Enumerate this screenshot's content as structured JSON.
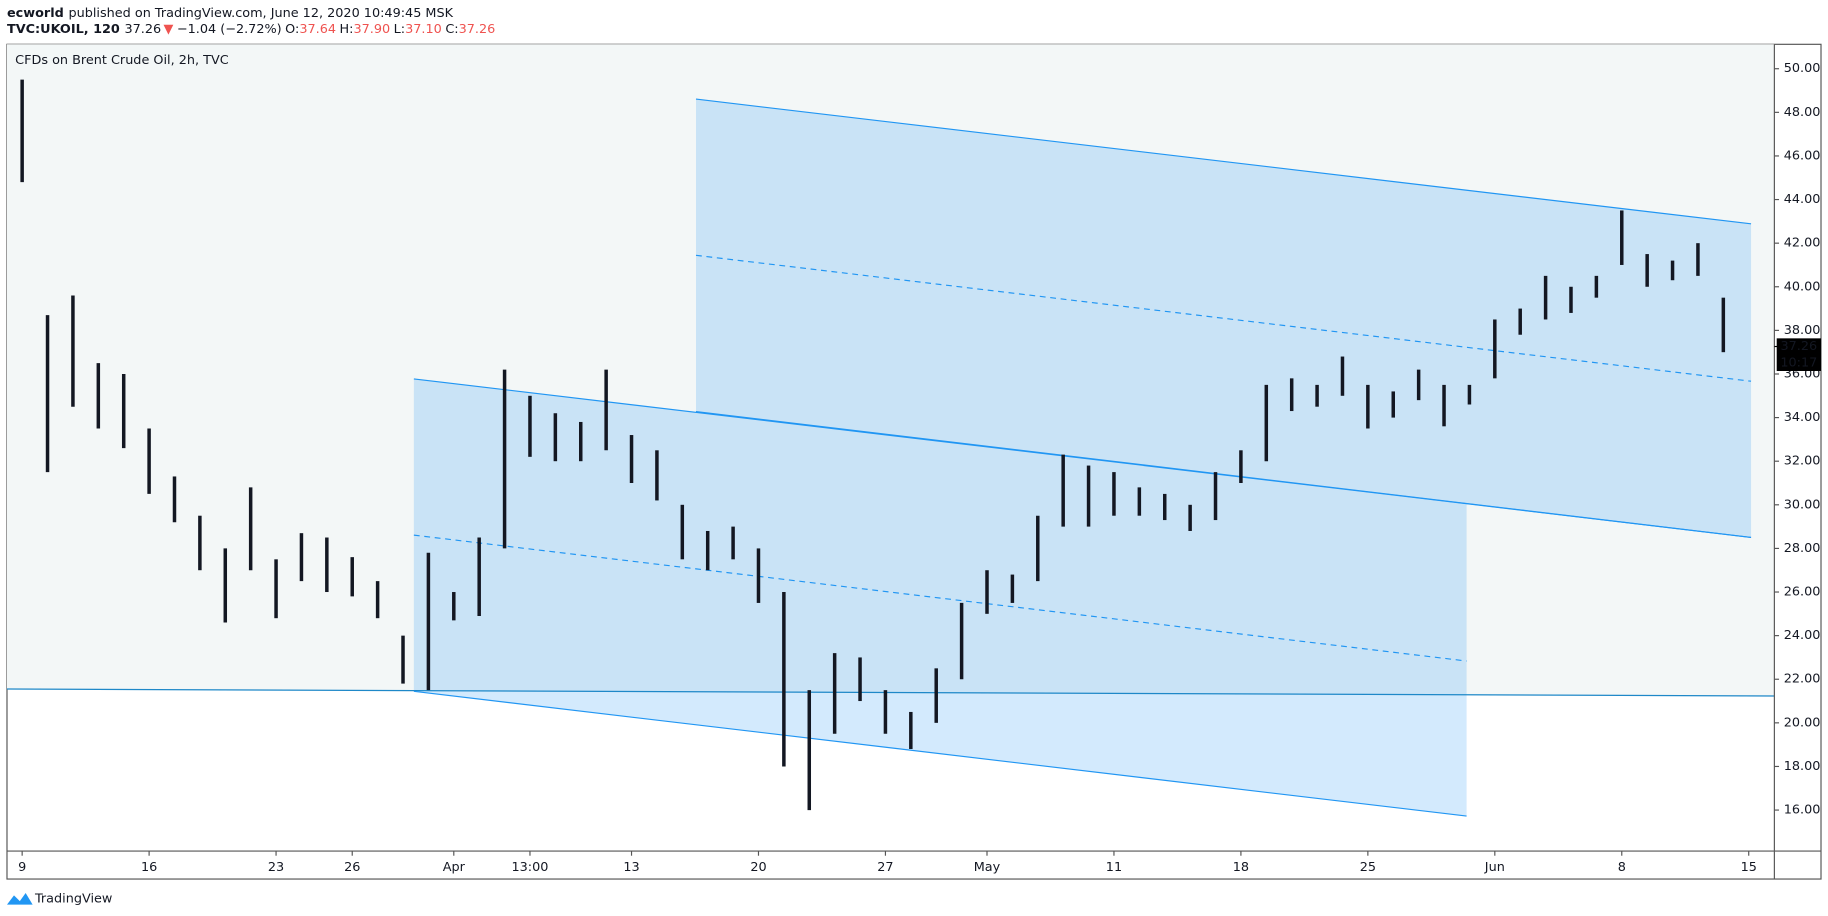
{
  "header": {
    "author": "ecworld",
    "published": "published on TradingView.com, June 12, 2020 10:49:45 MSK",
    "symbol": "TVC:UKOIL, 120",
    "price": "37.26",
    "change": "−1.04 (−2.72%)",
    "open_label": "O:",
    "open": "37.64",
    "high_label": "H:",
    "high": "37.90",
    "low_label": "L:",
    "low": "37.10",
    "close_label": "C:",
    "close": "37.26"
  },
  "footer": {
    "brand": "TradingView"
  },
  "chart_data": {
    "type": "range-bar",
    "title": "CFDs on Brent Crude Oil, 2h, TVC",
    "color": "#131722",
    "x": [
      "9",
      null,
      null,
      null,
      null,
      "16",
      null,
      null,
      null,
      null,
      "23",
      null,
      null,
      "26",
      null,
      null,
      null,
      "Apr",
      null,
      null,
      "13:00",
      null,
      null,
      null,
      "13",
      null,
      null,
      null,
      null,
      "20",
      null,
      null,
      null,
      null,
      "27",
      null,
      null,
      null,
      "May",
      null,
      null,
      null,
      null,
      "11",
      null,
      null,
      null,
      null,
      "18",
      null,
      null,
      null,
      null,
      "25",
      null,
      null,
      null,
      null,
      "Jun",
      null,
      null,
      null,
      null,
      "8",
      null,
      null,
      null,
      null,
      "15"
    ],
    "high": [
      49.5,
      38.7,
      39.6,
      36.5,
      36.0,
      33.5,
      31.3,
      29.5,
      28.0,
      30.8,
      27.5,
      28.7,
      28.5,
      27.6,
      26.5,
      24.0,
      27.8,
      26.0,
      28.5,
      36.2,
      35.0,
      34.2,
      33.8,
      36.2,
      33.2,
      32.5,
      30.0,
      28.8,
      29.0,
      28.0,
      26.0,
      21.5,
      23.2,
      23.0,
      21.5,
      20.5,
      22.5,
      25.5,
      27.0,
      26.8,
      29.5,
      32.3,
      31.8,
      31.5,
      30.8,
      30.5,
      30.0,
      31.5,
      32.5,
      35.5,
      35.8,
      35.5,
      36.8,
      35.5,
      35.2,
      36.2,
      35.5,
      35.5,
      38.5,
      39.0,
      40.5,
      40.0,
      40.5,
      43.5,
      41.5,
      41.2,
      42.0,
      39.5,
      null
    ],
    "low": [
      44.8,
      31.5,
      34.5,
      33.5,
      32.6,
      30.5,
      29.2,
      27.0,
      24.6,
      27.0,
      24.8,
      26.5,
      26.0,
      25.8,
      24.8,
      21.8,
      21.5,
      24.7,
      24.9,
      28.0,
      32.2,
      32.0,
      32.0,
      32.5,
      31.0,
      30.2,
      27.5,
      27.0,
      27.5,
      25.5,
      18.0,
      16.0,
      19.5,
      21.0,
      19.5,
      18.8,
      20.0,
      22.0,
      25.0,
      25.5,
      26.5,
      29.0,
      29.0,
      29.5,
      29.5,
      29.3,
      28.8,
      29.3,
      31.0,
      32.0,
      34.3,
      34.5,
      35.0,
      33.5,
      34.0,
      34.8,
      33.6,
      34.6,
      35.8,
      37.8,
      38.5,
      38.8,
      39.5,
      41.0,
      40.0,
      40.3,
      40.5,
      37.0,
      null
    ],
    "last_price": {
      "value": 37.26,
      "label": "37.26"
    },
    "countdown": "10:17",
    "ylim": [
      14.12,
      51.12
    ],
    "yticks": [
      {
        "value": 16,
        "label": "16.00"
      },
      {
        "value": 18,
        "label": "18.00"
      },
      {
        "value": 20,
        "label": "20.00"
      },
      {
        "value": 22,
        "label": "22.00"
      },
      {
        "value": 24,
        "label": "24.00"
      },
      {
        "value": 26,
        "label": "26.00"
      },
      {
        "value": 28,
        "label": "28.00"
      },
      {
        "value": 30,
        "label": "30.00"
      },
      {
        "value": 32,
        "label": "32.00"
      },
      {
        "value": 34,
        "label": "34.00"
      },
      {
        "value": 36,
        "label": "36.00"
      },
      {
        "value": 38,
        "label": "38.00"
      },
      {
        "value": 40,
        "label": "40.00"
      },
      {
        "value": 42,
        "label": "42.00"
      },
      {
        "value": 44,
        "label": "44.00"
      },
      {
        "value": 46,
        "label": "46.00"
      },
      {
        "value": 48,
        "label": "48.00"
      },
      {
        "value": 50,
        "label": "50.00"
      }
    ]
  }
}
